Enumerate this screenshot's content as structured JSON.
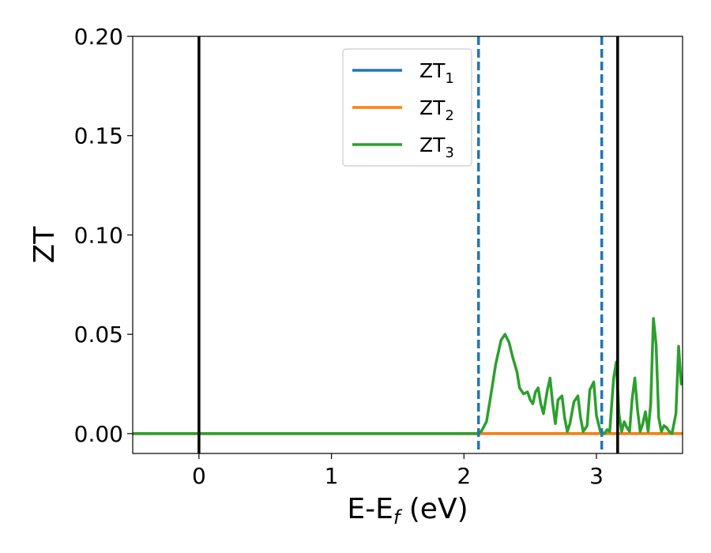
{
  "chart_data": {
    "type": "line",
    "xlabel": "E-E",
    "xlabel_sub": "f",
    "xlabel_unit": " (eV)",
    "ylabel": "ZT",
    "xlim": [
      -0.5,
      3.65
    ],
    "ylim": [
      -0.01,
      0.2
    ],
    "x_ticks": [
      0,
      1,
      2,
      3
    ],
    "x_tick_labels": [
      "0",
      "1",
      "2",
      "3"
    ],
    "y_ticks": [
      0.0,
      0.05,
      0.1,
      0.15,
      0.2
    ],
    "y_tick_labels": [
      "0.00",
      "0.05",
      "0.10",
      "0.15",
      "0.20"
    ],
    "grid": false,
    "legend_position": "upper-center",
    "vertical_lines": [
      {
        "x": 0.0,
        "color": "#000000",
        "style": "solid"
      },
      {
        "x": 2.11,
        "color": "#1f77b4",
        "style": "dashed"
      },
      {
        "x": 3.04,
        "color": "#1f77b4",
        "style": "dashed"
      },
      {
        "x": 3.16,
        "color": "#000000",
        "style": "solid"
      }
    ],
    "series": [
      {
        "name": "ZT",
        "name_sub": "1",
        "color": "#1f77b4",
        "x": [
          -0.5,
          3.65
        ],
        "y": [
          0.0,
          0.0
        ]
      },
      {
        "name": "ZT",
        "name_sub": "2",
        "color": "#ff7f0e",
        "x": [
          -0.5,
          3.65
        ],
        "y": [
          0.0,
          0.0
        ]
      },
      {
        "name": "ZT",
        "name_sub": "3",
        "color": "#2ca02c",
        "x": [
          -0.5,
          2.1,
          2.13,
          2.17,
          2.2,
          2.24,
          2.28,
          2.31,
          2.34,
          2.37,
          2.4,
          2.42,
          2.45,
          2.48,
          2.5,
          2.52,
          2.54,
          2.56,
          2.58,
          2.6,
          2.63,
          2.65,
          2.67,
          2.69,
          2.71,
          2.74,
          2.76,
          2.78,
          2.8,
          2.83,
          2.86,
          2.88,
          2.9,
          2.93,
          2.95,
          2.98,
          3.0,
          3.03,
          3.06,
          3.08,
          3.1,
          3.13,
          3.15,
          3.17,
          3.19,
          3.21,
          3.23,
          3.25,
          3.27,
          3.29,
          3.31,
          3.33,
          3.35,
          3.37,
          3.39,
          3.41,
          3.43,
          3.45,
          3.47,
          3.49,
          3.51,
          3.53,
          3.55,
          3.57,
          3.6,
          3.62,
          3.64,
          3.65
        ],
        "y": [
          0.0,
          0.0,
          0.001,
          0.006,
          0.018,
          0.035,
          0.047,
          0.05,
          0.046,
          0.038,
          0.031,
          0.023,
          0.02,
          0.021,
          0.017,
          0.015,
          0.021,
          0.023,
          0.015,
          0.01,
          0.022,
          0.028,
          0.015,
          0.005,
          0.017,
          0.019,
          0.008,
          0.001,
          0.005,
          0.016,
          0.019,
          0.008,
          0.001,
          0.004,
          0.022,
          0.026,
          0.009,
          0.001,
          0.0,
          0.002,
          0.001,
          0.028,
          0.036,
          0.01,
          0.001,
          0.006,
          0.003,
          0.001,
          0.018,
          0.028,
          0.012,
          0.001,
          0.005,
          0.011,
          0.001,
          0.015,
          0.058,
          0.045,
          0.008,
          0.001,
          0.004,
          0.003,
          0.001,
          0.0,
          0.01,
          0.044,
          0.025,
          0.025
        ]
      }
    ]
  }
}
